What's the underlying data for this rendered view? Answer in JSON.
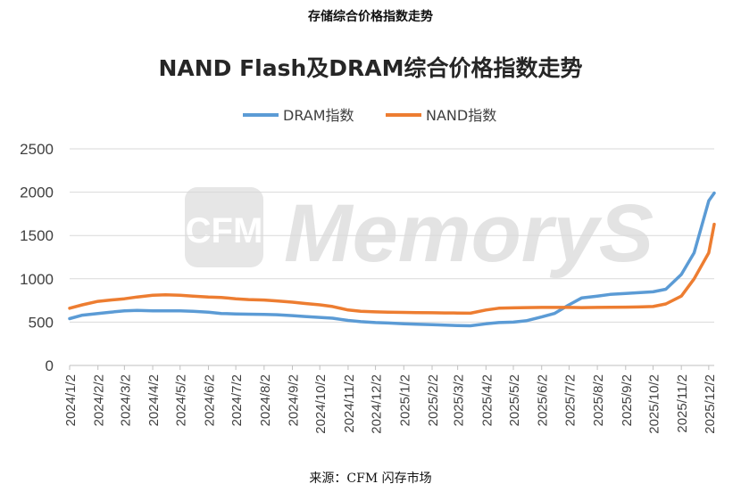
{
  "page": {
    "caption_top": "存储综合价格指数走势",
    "caption_source": "来源：CFM 闪存市场",
    "watermark_text": "MemoryS",
    "watermark_logo_text": "CFM"
  },
  "colors": {
    "dram": "#5b9bd5",
    "nand": "#ed7d31",
    "grid": "#d9d9d9",
    "watermark": "#e3e3e3"
  },
  "chart_data": {
    "type": "line",
    "title": "NAND Flash及DRAM综合价格指数走势",
    "legend_position": "top-center",
    "grid": true,
    "xlabel": "",
    "ylabel": "",
    "ylim": [
      0,
      2500
    ],
    "yticks": [
      "0",
      "500",
      "1000",
      "1500",
      "2000",
      "2500"
    ],
    "xticks": [
      "2024/1/2",
      "2024/2/2",
      "2024/3/2",
      "2024/4/2",
      "2024/5/2",
      "2024/6/2",
      "2024/7/2",
      "2024/8/2",
      "2024/9/2",
      "2024/10/2",
      "2024/11/2",
      "2024/12/2",
      "2025/1/2",
      "2025/2/2",
      "2025/3/2",
      "2025/4/2",
      "2025/5/2",
      "2025/6/2",
      "2025/7/2",
      "2025/8/2",
      "2025/9/2",
      "2025/10/2",
      "2025/11/2",
      "2025/12/2"
    ],
    "x": [
      "2024/1/2",
      "2024/1/16",
      "2024/2/2",
      "2024/2/16",
      "2024/3/2",
      "2024/3/16",
      "2024/4/2",
      "2024/4/16",
      "2024/5/2",
      "2024/5/16",
      "2024/6/2",
      "2024/6/16",
      "2024/7/2",
      "2024/7/16",
      "2024/8/2",
      "2024/8/16",
      "2024/9/2",
      "2024/9/16",
      "2024/10/2",
      "2024/10/16",
      "2024/11/2",
      "2024/11/16",
      "2024/12/2",
      "2024/12/16",
      "2025/1/2",
      "2025/1/16",
      "2025/2/2",
      "2025/2/16",
      "2025/3/2",
      "2025/3/16",
      "2025/4/2",
      "2025/4/16",
      "2025/5/2",
      "2025/5/16",
      "2025/6/2",
      "2025/6/16",
      "2025/7/2",
      "2025/7/16",
      "2025/8/2",
      "2025/8/16",
      "2025/9/2",
      "2025/9/16",
      "2025/10/2",
      "2025/10/16",
      "2025/11/2",
      "2025/11/16",
      "2025/12/2",
      "2025/12/8"
    ],
    "series": [
      {
        "name": "DRAM指数",
        "values": [
          540,
          580,
          600,
          615,
          630,
          635,
          630,
          630,
          630,
          625,
          615,
          600,
          595,
          592,
          590,
          585,
          575,
          565,
          555,
          545,
          520,
          505,
          495,
          490,
          480,
          475,
          470,
          465,
          460,
          458,
          480,
          495,
          500,
          515,
          560,
          600,
          700,
          780,
          800,
          820,
          830,
          840,
          850,
          880,
          1050,
          1300,
          1900,
          1990
        ]
      },
      {
        "name": "NAND指数",
        "values": [
          660,
          700,
          740,
          755,
          770,
          790,
          810,
          815,
          810,
          800,
          790,
          785,
          770,
          760,
          755,
          745,
          730,
          715,
          700,
          680,
          640,
          625,
          618,
          615,
          612,
          610,
          608,
          606,
          605,
          603,
          640,
          660,
          665,
          668,
          670,
          670,
          670,
          668,
          670,
          672,
          673,
          675,
          680,
          710,
          800,
          1000,
          1300,
          1630
        ]
      }
    ]
  }
}
